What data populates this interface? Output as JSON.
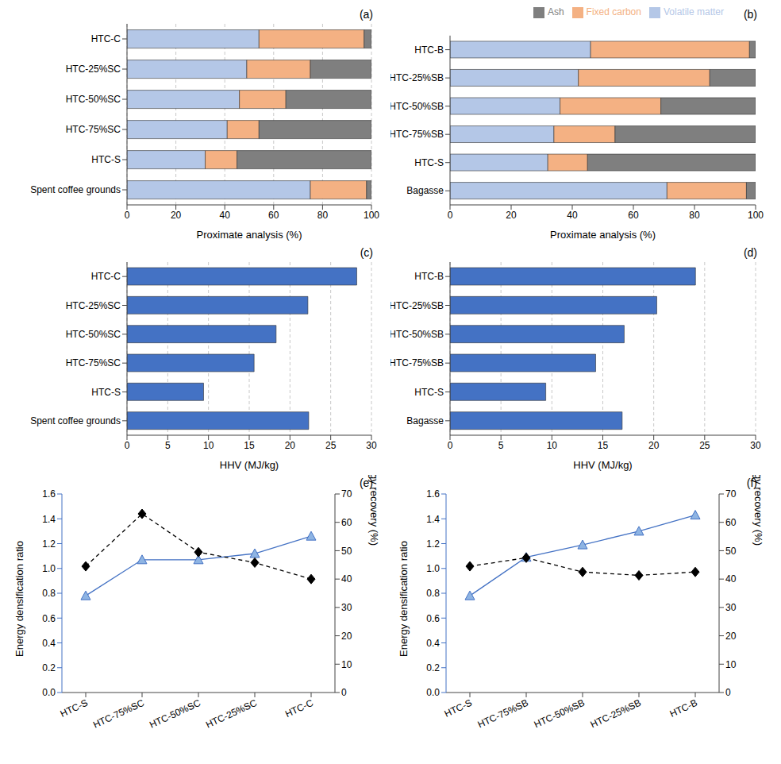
{
  "chart_data": [
    {
      "type": "bar",
      "title": "(a)",
      "orientation": "horizontal",
      "stacked": true,
      "grid": true,
      "categories": [
        "HTC-C",
        "HTC-25%SC",
        "HTC-50%SC",
        "HTC-75%SC",
        "HTC-S",
        "Spent coffee grounds"
      ],
      "xlabel": "Proximate analysis (%)",
      "xlim": [
        0,
        100
      ],
      "xticks": [
        0,
        20,
        40,
        60,
        80,
        100
      ],
      "series": [
        {
          "name": "Volatile matter",
          "color": "#b4c7e7",
          "values": [
            54,
            49,
            46,
            41,
            32,
            75
          ]
        },
        {
          "name": "Fixed carbon",
          "color": "#f4b183",
          "values": [
            43,
            26,
            19,
            13,
            13,
            23
          ]
        },
        {
          "name": "Ash",
          "color": "#7f7f7f",
          "values": [
            3,
            25,
            35,
            46,
            55,
            2
          ]
        }
      ]
    },
    {
      "type": "bar",
      "title": "(b)",
      "orientation": "horizontal",
      "stacked": true,
      "grid": false,
      "legend": "top-right",
      "categories": [
        "HTC-B",
        "HTC-25%SB",
        "HTC-50%SB",
        "HTC-75%SB",
        "HTC-S",
        "Bagasse"
      ],
      "xlabel": "Proximate analysis (%)",
      "xlim": [
        0,
        100
      ],
      "xticks": [
        0,
        20,
        40,
        60,
        80,
        100
      ],
      "series": [
        {
          "name": "Volatile matter",
          "color": "#b4c7e7",
          "values": [
            46,
            42,
            36,
            34,
            32,
            71
          ]
        },
        {
          "name": "Fixed carbon",
          "color": "#f4b183",
          "values": [
            52,
            43,
            33,
            20,
            13,
            26
          ]
        },
        {
          "name": "Ash",
          "color": "#7f7f7f",
          "values": [
            2,
            15,
            31,
            46,
            55,
            3
          ]
        }
      ]
    },
    {
      "type": "bar",
      "title": "(c)",
      "orientation": "horizontal",
      "grid": true,
      "color": "#4472c4",
      "categories": [
        "HTC-C",
        "HTC-25%SC",
        "HTC-50%SC",
        "HTC-75%SC",
        "HTC-S",
        "Spent coffee grounds"
      ],
      "xlabel": "HHV (MJ/kg)",
      "xlim": [
        0,
        30
      ],
      "xticks": [
        0,
        5,
        10,
        15,
        20,
        25,
        30
      ],
      "values": [
        28.2,
        22.2,
        18.3,
        15.6,
        9.4,
        22.3
      ]
    },
    {
      "type": "bar",
      "title": "(d)",
      "orientation": "horizontal",
      "grid": true,
      "color": "#4472c4",
      "categories": [
        "HTC-B",
        "HTC-25%SB",
        "HTC-50%SB",
        "HTC-75%SB",
        "HTC-S",
        "Bagasse"
      ],
      "xlabel": "HHV (MJ/kg)",
      "xlim": [
        0,
        30
      ],
      "xticks": [
        0,
        5,
        10,
        15,
        20,
        25,
        30
      ],
      "values": [
        24.1,
        20.3,
        17.1,
        14.3,
        9.4,
        16.9
      ]
    },
    {
      "type": "line",
      "title": "(e)",
      "categories": [
        "HTC-S",
        "HTC-75%SC",
        "HTC-50%SC",
        "HTC-25%SC",
        "HTC-C"
      ],
      "ylabel": "Energy densification ratio",
      "y2label": "Energy recovery (%)",
      "ylim": [
        0,
        1.6
      ],
      "yticks": [
        {
          "value": 0,
          "label": "0.0"
        },
        0.2,
        0.4,
        0.6,
        0.8,
        {
          "value": 1,
          "label": "1.0"
        },
        1.2,
        1.4,
        1.6
      ],
      "y2lim": [
        0,
        70
      ],
      "y2ticks": [
        0,
        10,
        20,
        30,
        40,
        50,
        60,
        70
      ],
      "series": [
        {
          "color": "#4472c4",
          "marker": "triangle",
          "line_style": "solid",
          "values": [
            0.78,
            1.07,
            1.07,
            1.12,
            1.26
          ]
        },
        {
          "color": "#000000",
          "marker": "diamond",
          "line_style": "dashed",
          "axis": "y2",
          "values": [
            44.5,
            63,
            49.5,
            45.8,
            40
          ]
        }
      ]
    },
    {
      "type": "line",
      "title": "(f)",
      "categories": [
        "HTC-S",
        "HTC-75%SB",
        "HTC-50%SB",
        "HTC-25%SB",
        "HTC-B"
      ],
      "ylabel": "Energy densification ratio",
      "y2label": "Energy recovery (%)",
      "ylim": [
        0,
        1.6
      ],
      "yticks": [
        {
          "value": 0,
          "label": "0.0"
        },
        0.2,
        0.4,
        0.6,
        0.8,
        {
          "value": 1,
          "label": "1.0"
        },
        1.2,
        1.4,
        1.6
      ],
      "y2lim": [
        0,
        70
      ],
      "y2ticks": [
        0,
        10,
        20,
        30,
        40,
        50,
        60,
        70
      ],
      "series": [
        {
          "color": "#4472c4",
          "marker": "triangle",
          "line_style": "solid",
          "values": [
            0.78,
            1.09,
            1.19,
            1.3,
            1.43
          ]
        },
        {
          "color": "#000000",
          "marker": "diamond",
          "line_style": "dashed",
          "axis": "y2",
          "values": [
            44.5,
            47.5,
            42.5,
            41.3,
            42.5
          ]
        }
      ]
    }
  ]
}
